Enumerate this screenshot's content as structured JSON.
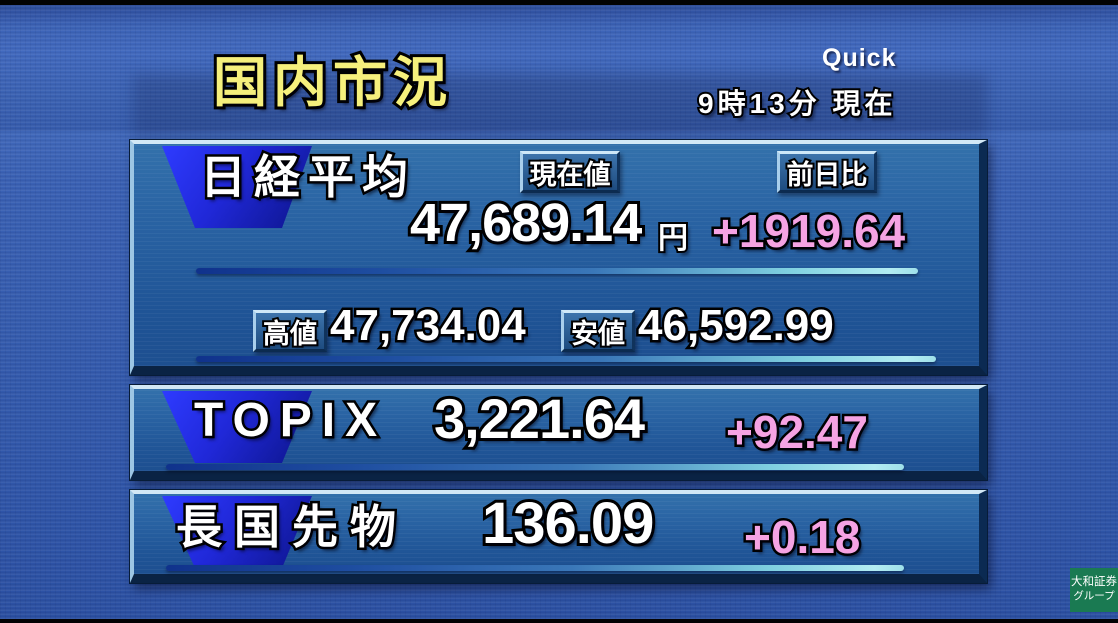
{
  "header": {
    "title": "国内市況",
    "provider": "Quick",
    "time": "9時13分 現在"
  },
  "panels": {
    "nikkei": {
      "name": "日経平均",
      "current_label": "現在値",
      "change_label": "前日比",
      "value": "47,689.14",
      "unit": "円",
      "change": "+1919.64",
      "high_label": "高値",
      "high": "47,734.04",
      "low_label": "安値",
      "low": "46,592.99"
    },
    "topix": {
      "name": "TOPIX",
      "value": "3,221.64",
      "change": "+92.47"
    },
    "jgb_futures": {
      "name": "長国先物",
      "value": "136.09",
      "change": "+0.18"
    }
  },
  "footer": {
    "logo_line1": "大和証券",
    "logo_line2": "グループ"
  },
  "colors": {
    "pink_up": "#f5a3e3",
    "title_yellow": "#f6f07c",
    "daiwa_green": "#1a7a52"
  }
}
